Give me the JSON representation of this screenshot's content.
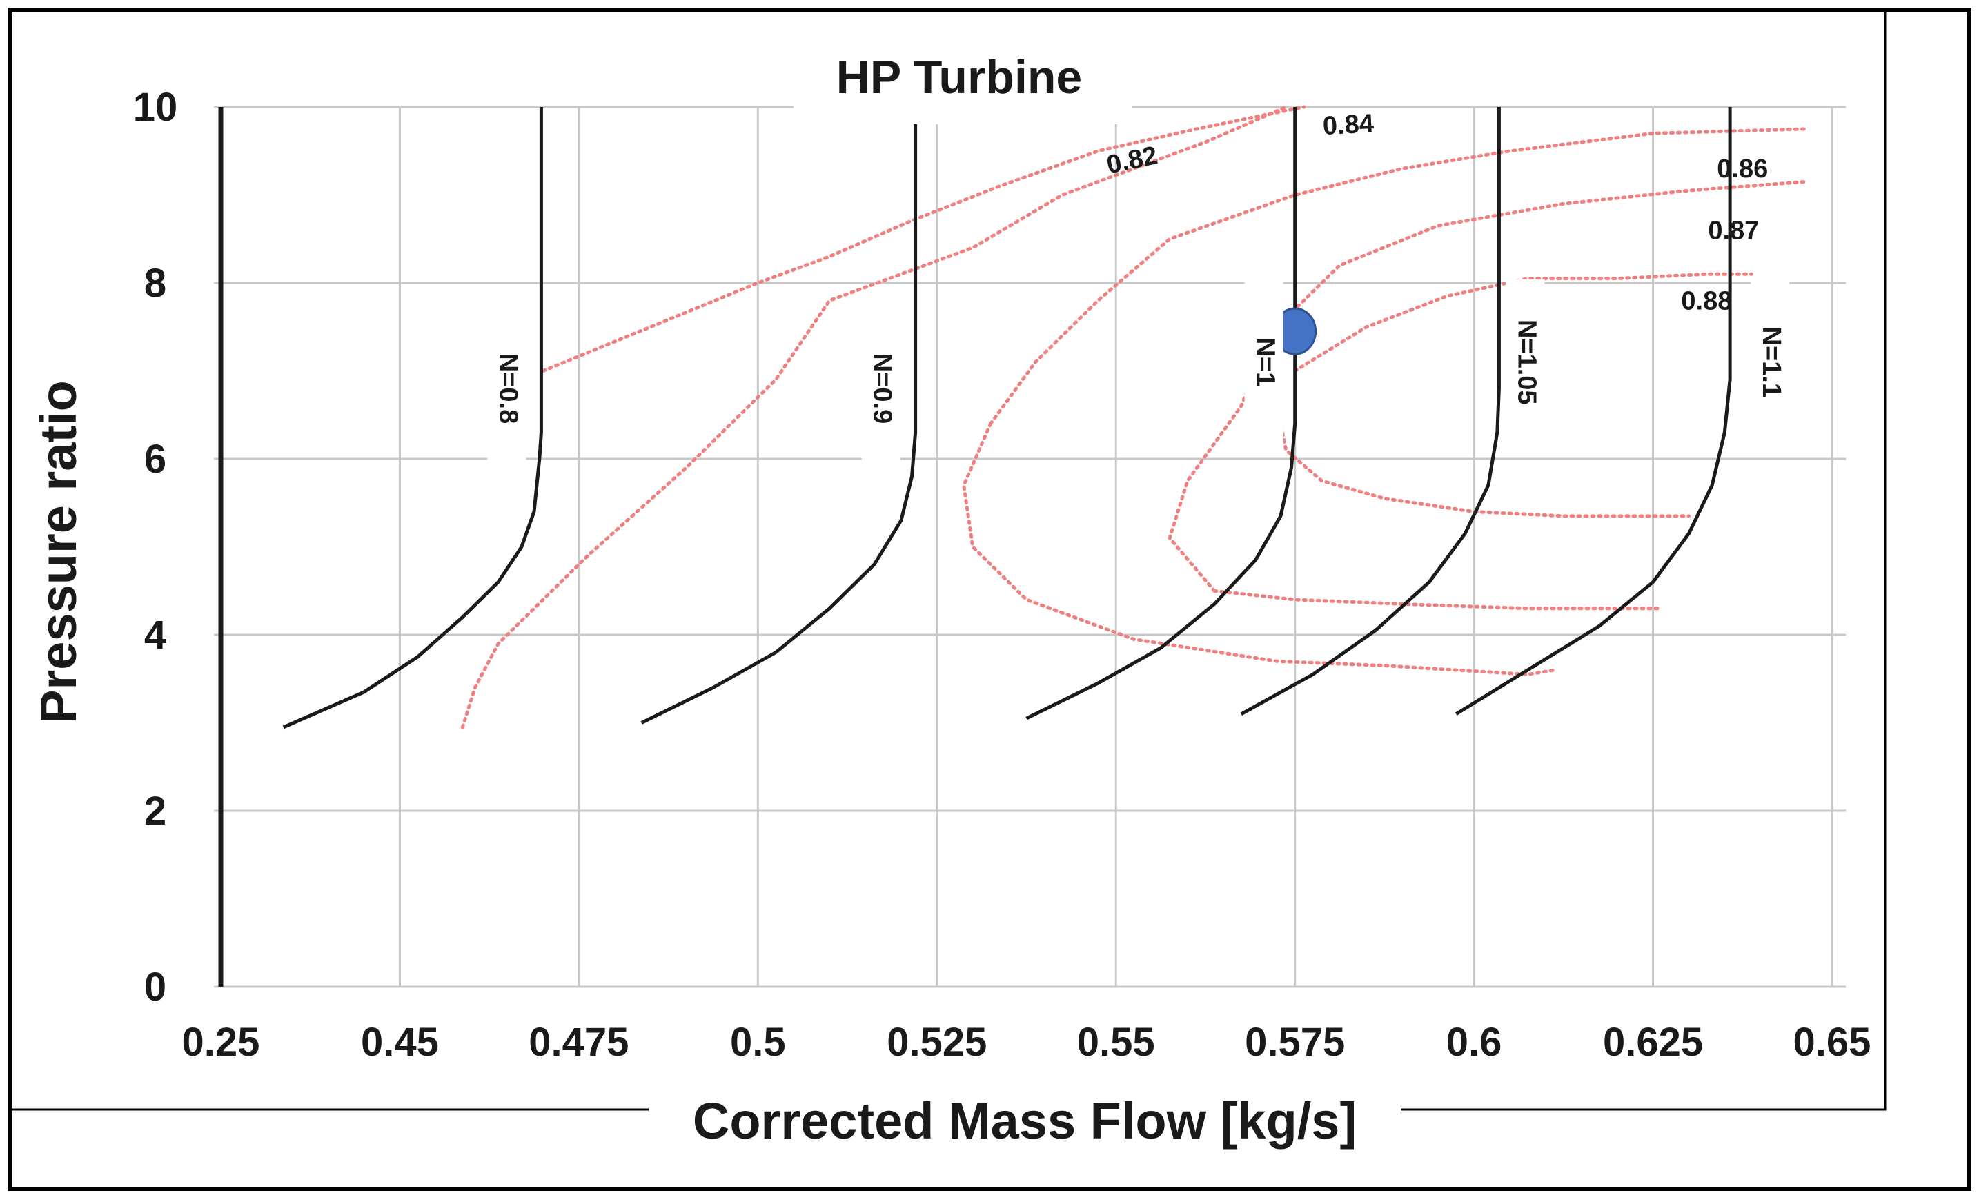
{
  "chart_data": {
    "type": "line",
    "title": "HP Turbine",
    "xlabel": "Corrected Mass Flow [kg/s]",
    "ylabel": "Pressure ratio",
    "grid": true,
    "ylim": [
      0,
      10
    ],
    "x_tick_labels": [
      "0.25",
      "0.45",
      "0.475",
      "0.5",
      "0.525",
      "0.55",
      "0.575",
      "0.6",
      "0.625",
      "0.65"
    ],
    "y_tick_labels": [
      "0",
      "2",
      "4",
      "6",
      "8",
      "10"
    ],
    "note": "x positions are expressed in tick-index units (0 = '0.25' ... 9 = '0.65')",
    "speed_lines": [
      {
        "name": "N=0.8",
        "label_y": 6.8,
        "points": [
          [
            0.35,
            2.95
          ],
          [
            0.8,
            3.35
          ],
          [
            1.1,
            3.75
          ],
          [
            1.35,
            4.2
          ],
          [
            1.55,
            4.6
          ],
          [
            1.68,
            5.0
          ],
          [
            1.75,
            5.4
          ],
          [
            1.78,
            6.0
          ],
          [
            1.79,
            6.3
          ],
          [
            1.79,
            10.0
          ]
        ]
      },
      {
        "name": "N=0.9",
        "label_y": 6.8,
        "points": [
          [
            2.35,
            3.0
          ],
          [
            2.75,
            3.4
          ],
          [
            3.1,
            3.8
          ],
          [
            3.4,
            4.3
          ],
          [
            3.65,
            4.8
          ],
          [
            3.8,
            5.3
          ],
          [
            3.86,
            5.8
          ],
          [
            3.88,
            6.3
          ],
          [
            3.88,
            10.0
          ]
        ]
      },
      {
        "name": "N=1",
        "label_y": 7.1,
        "points": [
          [
            4.5,
            3.05
          ],
          [
            4.9,
            3.45
          ],
          [
            5.25,
            3.85
          ],
          [
            5.55,
            4.35
          ],
          [
            5.78,
            4.85
          ],
          [
            5.92,
            5.35
          ],
          [
            5.98,
            5.9
          ],
          [
            6.0,
            6.4
          ],
          [
            6.0,
            10.0
          ]
        ]
      },
      {
        "name": "N=1.05",
        "label_y": 7.1,
        "points": [
          [
            5.7,
            3.1
          ],
          [
            6.1,
            3.55
          ],
          [
            6.45,
            4.05
          ],
          [
            6.75,
            4.6
          ],
          [
            6.95,
            5.15
          ],
          [
            7.08,
            5.7
          ],
          [
            7.13,
            6.3
          ],
          [
            7.14,
            6.8
          ],
          [
            7.14,
            10.0
          ]
        ]
      },
      {
        "name": "N=1.1",
        "label_y": 7.1,
        "points": [
          [
            6.9,
            3.1
          ],
          [
            7.3,
            3.6
          ],
          [
            7.7,
            4.1
          ],
          [
            8.0,
            4.6
          ],
          [
            8.2,
            5.15
          ],
          [
            8.33,
            5.7
          ],
          [
            8.4,
            6.3
          ],
          [
            8.43,
            6.9
          ],
          [
            8.43,
            10.0
          ]
        ]
      }
    ],
    "efficiency_contours": [
      {
        "label": "0.82",
        "label_pos": [
          5.1,
          9.3
        ],
        "points": [
          [
            1.35,
            2.95
          ],
          [
            1.42,
            3.4
          ],
          [
            1.55,
            3.9
          ],
          [
            2.05,
            4.9
          ],
          [
            2.6,
            5.9
          ],
          [
            3.1,
            6.9
          ],
          [
            3.4,
            7.8
          ],
          [
            4.2,
            8.4
          ],
          [
            4.7,
            9.0
          ],
          [
            5.5,
            9.6
          ],
          [
            5.95,
            10.0
          ]
        ]
      },
      {
        "label": "0.84",
        "label_pos": [
          6.3,
          9.7
        ],
        "points": [
          [
            1.8,
            7.0
          ],
          [
            2.4,
            7.5
          ],
          [
            3.0,
            8.0
          ],
          [
            3.4,
            8.3
          ],
          [
            3.85,
            8.7
          ],
          [
            4.35,
            9.1
          ],
          [
            4.9,
            9.5
          ],
          [
            5.45,
            9.75
          ],
          [
            6.05,
            10.0
          ]
        ]
      },
      {
        "label": "0.86",
        "label_pos": [
          8.5,
          9.2
        ],
        "points": [
          [
            4.3,
            6.4
          ],
          [
            4.15,
            5.7
          ],
          [
            4.2,
            5.0
          ],
          [
            4.5,
            4.4
          ],
          [
            5.1,
            3.95
          ],
          [
            5.9,
            3.7
          ],
          [
            6.5,
            3.65
          ],
          [
            7.3,
            3.55
          ],
          [
            7.45,
            3.6
          ]
        ]
      },
      {
        "label": "0.86",
        "label_pos": [
          8.5,
          9.2
        ],
        "points": [
          [
            4.3,
            6.4
          ],
          [
            4.55,
            7.1
          ],
          [
            4.9,
            7.8
          ],
          [
            5.3,
            8.5
          ],
          [
            6.0,
            9.0
          ],
          [
            6.6,
            9.3
          ],
          [
            7.2,
            9.5
          ],
          [
            8.0,
            9.7
          ],
          [
            8.85,
            9.75
          ]
        ]
      },
      {
        "label": "0.87",
        "label_pos": [
          8.45,
          8.5
        ],
        "points": [
          [
            5.55,
            4.5
          ],
          [
            5.3,
            5.1
          ],
          [
            5.4,
            5.75
          ],
          [
            5.7,
            6.6
          ],
          [
            5.85,
            7.4
          ],
          [
            6.25,
            8.2
          ],
          [
            6.8,
            8.65
          ],
          [
            7.5,
            8.9
          ],
          [
            8.2,
            9.05
          ],
          [
            8.85,
            9.15
          ]
        ]
      },
      {
        "label": "0.87",
        "label_pos": [
          8.45,
          8.5
        ],
        "points": [
          [
            5.55,
            4.5
          ],
          [
            6.0,
            4.4
          ],
          [
            6.6,
            4.35
          ],
          [
            7.3,
            4.3
          ],
          [
            8.05,
            4.3
          ]
        ]
      },
      {
        "label": "0.88",
        "label_pos": [
          8.3,
          7.7
        ],
        "points": [
          [
            5.9,
            6.6
          ],
          [
            5.95,
            6.1
          ],
          [
            6.15,
            5.75
          ],
          [
            6.5,
            5.55
          ],
          [
            7.0,
            5.4
          ],
          [
            7.5,
            5.35
          ],
          [
            8.0,
            5.35
          ],
          [
            8.2,
            5.35
          ]
        ]
      },
      {
        "label": "0.88",
        "label_pos": [
          8.3,
          7.7
        ],
        "points": [
          [
            6.0,
            7.0
          ],
          [
            6.4,
            7.5
          ],
          [
            6.85,
            7.85
          ],
          [
            7.3,
            8.05
          ],
          [
            7.8,
            8.05
          ],
          [
            8.3,
            8.1
          ],
          [
            8.55,
            8.1
          ]
        ]
      }
    ],
    "operating_point": {
      "x": 6.0,
      "y": 7.45,
      "color": "#4472C4"
    },
    "colors": {
      "speed_line": "#1a1a1a",
      "efficiency": "#f08080",
      "grid": "#c8c8c8",
      "frame": "#000000"
    }
  }
}
